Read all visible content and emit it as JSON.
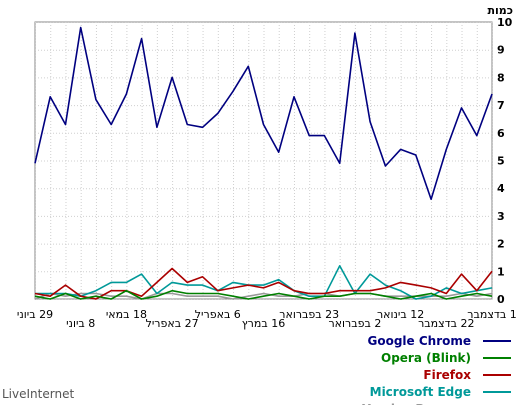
{
  "brand": "LiveInternet",
  "chart_data": {
    "type": "line",
    "ylabel": "כמות",
    "ylim": [
      0,
      10
    ],
    "yticks": [
      0,
      1,
      2,
      3,
      4,
      5,
      6,
      7,
      8,
      9,
      10
    ],
    "grid": true,
    "legend_position": "bottom-right",
    "x_tick_labels": [
      {
        "i": 0,
        "label": "29 ביוני",
        "row": 0
      },
      {
        "i": 3,
        "label": "8 ביוני",
        "row": 1
      },
      {
        "i": 6,
        "label": "18 במאי",
        "row": 0
      },
      {
        "i": 9,
        "label": "27 באפריל",
        "row": 1
      },
      {
        "i": 12,
        "label": "6 באפריל",
        "row": 0
      },
      {
        "i": 15,
        "label": "16 במרץ",
        "row": 1
      },
      {
        "i": 18,
        "label": "23 בפברואר",
        "row": 0
      },
      {
        "i": 21,
        "label": "2 בפברואר",
        "row": 1
      },
      {
        "i": 24,
        "label": "12 בינואר",
        "row": 0
      },
      {
        "i": 27,
        "label": "22 בדצמבר",
        "row": 1
      },
      {
        "i": 30,
        "label": "1 בדצמבר",
        "row": 0
      }
    ],
    "series": [
      {
        "name": "Google Chrome",
        "color": "#000080",
        "values": [
          4.9,
          7.3,
          6.3,
          9.8,
          7.2,
          6.3,
          7.4,
          9.4,
          6.2,
          8.0,
          6.3,
          6.2,
          6.7,
          7.5,
          8.4,
          6.3,
          5.3,
          7.3,
          5.9,
          5.9,
          4.9,
          9.6,
          6.4,
          4.8,
          5.4,
          5.2,
          3.6,
          5.4,
          6.9,
          5.9,
          7.4
        ]
      },
      {
        "name": "Opera (Blink)",
        "color": "#008000",
        "values": [
          0.1,
          0.0,
          0.2,
          0.0,
          0.1,
          0.0,
          0.3,
          0.0,
          0.1,
          0.3,
          0.2,
          0.2,
          0.2,
          0.1,
          0.0,
          0.1,
          0.2,
          0.1,
          0.0,
          0.1,
          0.1,
          0.2,
          0.2,
          0.1,
          0.0,
          0.1,
          0.2,
          0.0,
          0.1,
          0.2,
          0.1
        ]
      },
      {
        "name": "Firefox",
        "color": "#aa0000",
        "values": [
          0.2,
          0.1,
          0.5,
          0.1,
          0.0,
          0.3,
          0.3,
          0.1,
          0.6,
          1.1,
          0.6,
          0.8,
          0.3,
          0.4,
          0.5,
          0.4,
          0.6,
          0.3,
          0.2,
          0.2,
          0.3,
          0.3,
          0.3,
          0.4,
          0.6,
          0.5,
          0.4,
          0.2,
          0.9,
          0.3,
          1.0
        ]
      },
      {
        "name": "Microsoft Edge",
        "color": "#009999",
        "values": [
          0.2,
          0.2,
          0.2,
          0.1,
          0.3,
          0.6,
          0.6,
          0.9,
          0.2,
          0.6,
          0.5,
          0.5,
          0.3,
          0.6,
          0.5,
          0.5,
          0.7,
          0.3,
          0.1,
          0.1,
          1.2,
          0.2,
          0.9,
          0.5,
          0.3,
          0.0,
          0.1,
          0.4,
          0.2,
          0.3,
          0.4
        ]
      },
      {
        "name": "Yandex.Browser",
        "color": "#999999",
        "values": [
          0.0,
          0.2,
          0.1,
          0.2,
          0.2,
          0.1,
          0.1,
          0.0,
          0.2,
          0.2,
          0.1,
          0.1,
          0.1,
          0.0,
          0.1,
          0.2,
          0.1,
          0.1,
          0.2,
          0.2,
          0.1,
          0.2,
          0.2,
          0.1,
          0.1,
          0.1,
          0.1,
          0.1,
          0.2,
          0.1,
          0.2
        ]
      }
    ]
  }
}
